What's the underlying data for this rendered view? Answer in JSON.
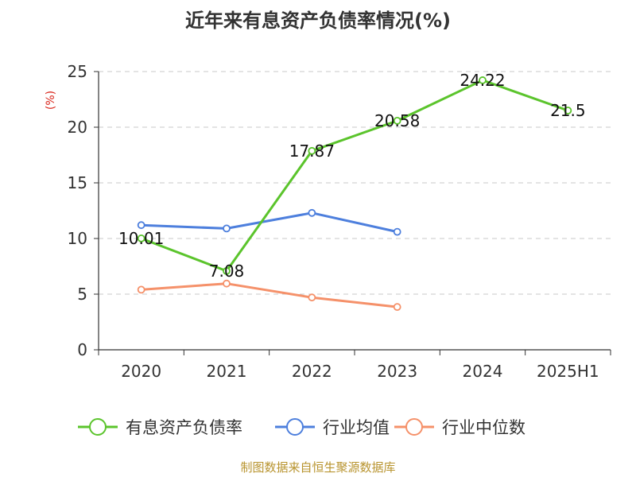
{
  "chart_data": {
    "type": "line",
    "title": "近年来有息资产负债率情况(%)",
    "ylabel": "(%)",
    "categories": [
      "2020",
      "2021",
      "2022",
      "2023",
      "2024",
      "2025H1"
    ],
    "ylim": [
      0,
      25
    ],
    "yticks": [
      0,
      5,
      10,
      15,
      20,
      25
    ],
    "grid": true,
    "legend_position": "bottom",
    "series": [
      {
        "name": "有息资产负债率",
        "color": "#5bc42c",
        "values": [
          10.01,
          7.08,
          17.87,
          20.58,
          24.22,
          21.5
        ],
        "labels": [
          "10.01",
          "7.08",
          "17.87",
          "20.58",
          "24.22",
          "21.5"
        ]
      },
      {
        "name": "行业均值",
        "color": "#4d7fdd",
        "values": [
          11.2,
          10.9,
          12.3,
          10.6,
          null,
          null
        ]
      },
      {
        "name": "行业中位数",
        "color": "#f5916a",
        "values": [
          5.4,
          5.95,
          4.7,
          3.85,
          null,
          null
        ]
      }
    ]
  },
  "footer": {
    "source": "制图数据来自恒生聚源数据库"
  }
}
